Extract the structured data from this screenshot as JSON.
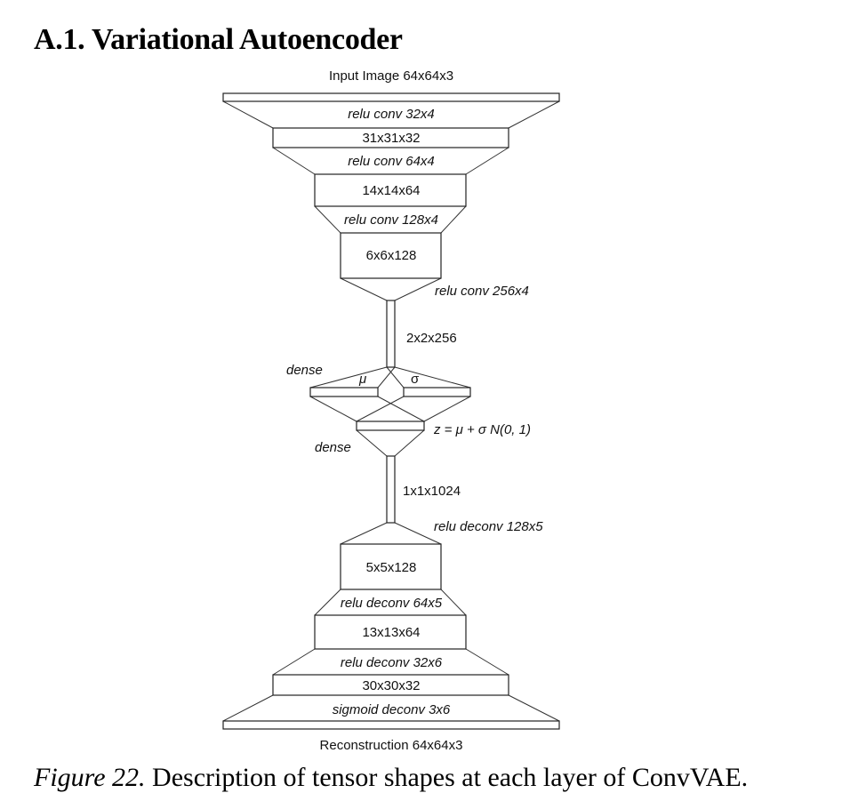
{
  "section": {
    "title": "A.1. Variational Autoencoder"
  },
  "labels": {
    "input": "Input Image 64x64x3",
    "enc1_op": "relu conv 32x4",
    "enc1_shape": "31x31x32",
    "enc2_op": "relu conv 64x4",
    "enc2_shape": "14x14x64",
    "enc3_op": "relu conv 128x4",
    "enc3_shape": "6x6x128",
    "enc4_op": "relu conv 256x4",
    "enc4_shape": "2x2x256",
    "dense_enc": "dense",
    "mu": "μ",
    "sigma": "σ",
    "z_eq": "z = μ + σ N(0, 1)",
    "dense_dec": "dense",
    "dec0_shape": "1x1x1024",
    "dec1_op": "relu deconv 128x5",
    "dec1_shape": "5x5x128",
    "dec2_op": "relu deconv 64x5",
    "dec2_shape": "13x13x64",
    "dec3_op": "relu deconv 32x6",
    "dec3_shape": "30x30x32",
    "dec4_op": "sigmoid deconv 3x6",
    "output": "Reconstruction 64x64x3"
  },
  "caption": {
    "number": "Figure 22.",
    "text": " Description of tensor shapes at each layer of ConvVAE."
  }
}
